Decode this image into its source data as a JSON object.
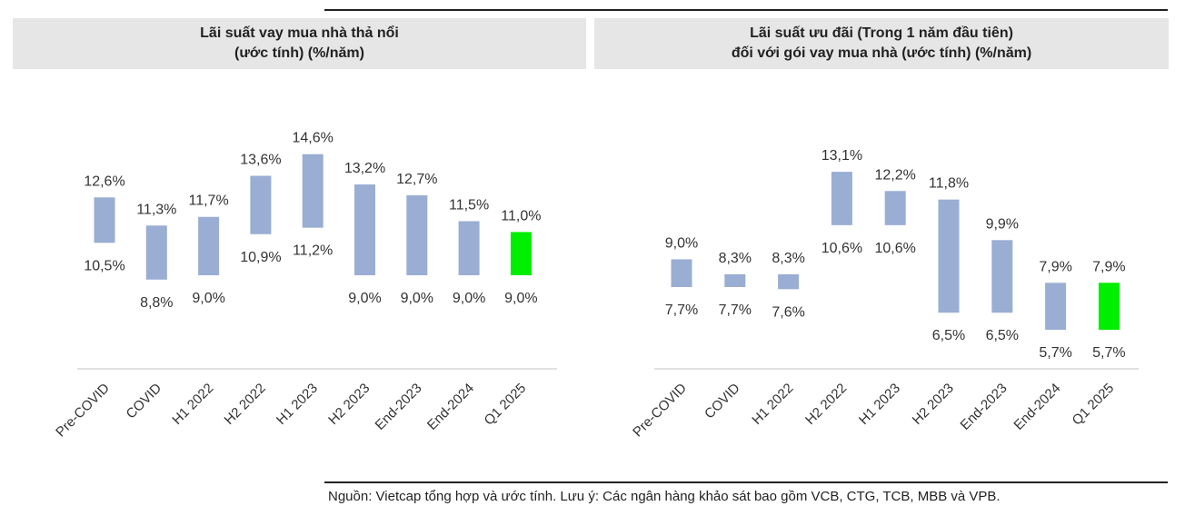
{
  "chart_data": [
    {
      "type": "bar",
      "title_lines": [
        "Lãi suất vay mua nhà thả nổi",
        "(ước tính) (%/năm)"
      ],
      "categories": [
        "Pre-COVID",
        "COVID",
        "H1 2022",
        "H2 2022",
        "H1 2023",
        "H2 2023",
        "End-2023",
        "End-2024",
        "Q1 2025"
      ],
      "series": [
        {
          "low": [
            10.5,
            8.8,
            9.0,
            10.9,
            11.2,
            9.0,
            9.0,
            9.0,
            9.0
          ],
          "high": [
            12.6,
            11.3,
            11.7,
            13.6,
            14.6,
            13.2,
            12.7,
            11.5,
            11.0
          ]
        }
      ],
      "low_labels": [
        "10,5%",
        "8,8%",
        "9,0%",
        "10,9%",
        "11,2%",
        "9,0%",
        "9,0%",
        "9,0%",
        "9,0%"
      ],
      "high_labels": [
        "12,6%",
        "11,3%",
        "11,7%",
        "13,6%",
        "14,6%",
        "13,2%",
        "12,7%",
        "11,5%",
        "11,0%"
      ],
      "colors": {
        "bar": "#9aadd3",
        "highlight": "#00ee00",
        "axis": "#d9d9d9"
      },
      "highlight_index": 8
    },
    {
      "type": "bar",
      "title_lines": [
        "Lãi suất ưu đãi (Trong 1 năm đầu tiên)",
        "đối với gói vay mua nhà (ước tính) (%/năm)"
      ],
      "categories": [
        "Pre-COVID",
        "COVID",
        "H1 2022",
        "H2 2022",
        "H1 2023",
        "H2 2023",
        "End-2023",
        "End-2024",
        "Q1 2025"
      ],
      "series": [
        {
          "low": [
            7.7,
            7.7,
            7.6,
            10.6,
            10.6,
            6.5,
            6.5,
            5.7,
            5.7
          ],
          "high": [
            9.0,
            8.3,
            8.3,
            13.1,
            12.2,
            11.8,
            9.9,
            7.9,
            7.9
          ]
        }
      ],
      "low_labels": [
        "7,7%",
        "7,7%",
        "7,6%",
        "10,6%",
        "10,6%",
        "6,5%",
        "6,5%",
        "5,7%",
        "5,7%"
      ],
      "high_labels": [
        "9,0%",
        "8,3%",
        "8,3%",
        "13,1%",
        "12,2%",
        "11,8%",
        "9,9%",
        "7,9%",
        "7,9%"
      ],
      "colors": {
        "bar": "#9aadd3",
        "highlight": "#00ee00",
        "axis": "#d9d9d9"
      },
      "highlight_index": 8
    }
  ],
  "footer": {
    "source": "Nguồn: Vietcap tổng hợp và ước tính. Lưu ý: Các ngân hàng khảo sát bao gồm VCB, CTG, TCB, MBB và VPB."
  }
}
